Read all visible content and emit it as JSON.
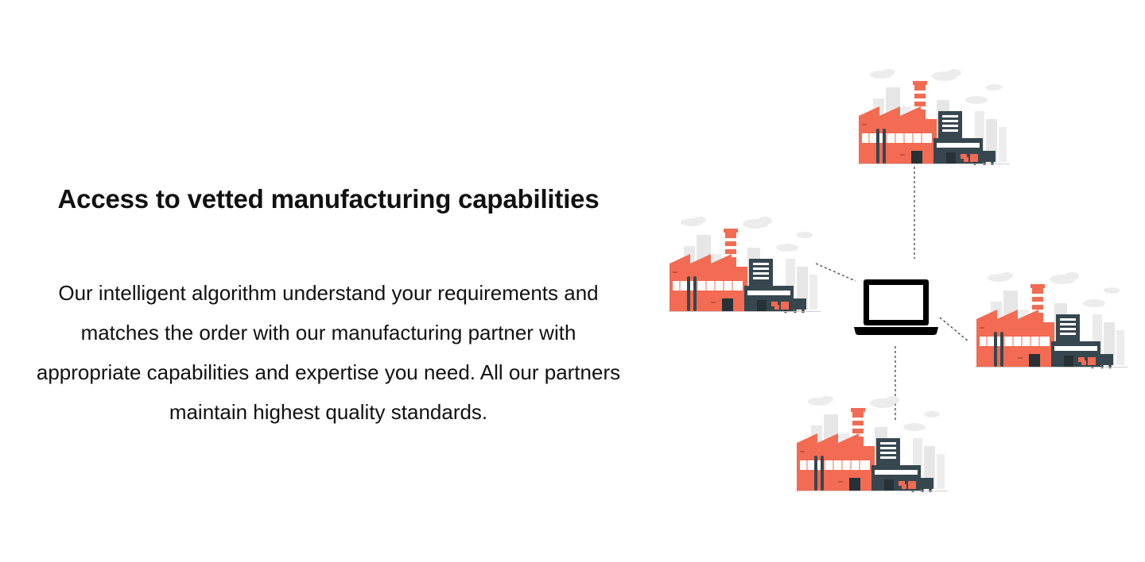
{
  "section": {
    "heading": "Access to vetted manufacturing capabilities",
    "body": "Our intelligent algorithm understand your requirements and matches the order with our manufacturing partner with appropriate capabilities and expertise you need. All our partners maintain highest quality standards."
  },
  "illustration": {
    "icons": [
      "laptop-icon",
      "factory-icon"
    ],
    "colors": {
      "factory_red": "#f26b52",
      "factory_dark": "#37474f",
      "building_grey": "#e6e6e6",
      "cloud_grey": "#ececec",
      "laptop": "#000000",
      "connector": "#333333"
    }
  }
}
